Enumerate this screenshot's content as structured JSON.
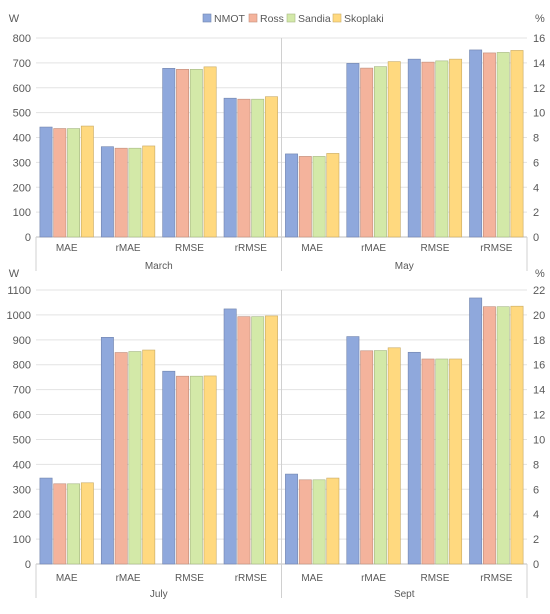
{
  "legend": {
    "series": [
      {
        "name": "NMOT",
        "color": "#8fa8dc"
      },
      {
        "name": "Ross",
        "color": "#f4b39c"
      },
      {
        "name": "Sandia",
        "color": "#d3e9a8"
      },
      {
        "name": "Skoplaki",
        "color": "#ffd97f"
      }
    ]
  },
  "chart_data": [
    {
      "type": "bar",
      "metrics": [
        "MAE",
        "rMAE",
        "RMSE",
        "rRMSE"
      ],
      "left_unit": "W",
      "right_unit": "%",
      "left_axis": {
        "min": 0,
        "max": 800,
        "step": 100
      },
      "right_axis": {
        "min": 0,
        "max": 16,
        "step": 2
      },
      "grid": true,
      "legend_position": "top",
      "panels": [
        {
          "period": "March",
          "values": [
            [
              442,
              436,
              436,
              446
            ],
            [
              363,
              357,
              357,
              366
            ],
            [
              678,
              674,
              674,
              684
            ],
            [
              558,
              554,
              554,
              564
            ]
          ]
        },
        {
          "period": "May",
          "values": [
            [
              334,
              324,
              324,
              336
            ],
            [
              698,
              679,
              685,
              705
            ],
            [
              715,
              703,
              708,
              715
            ],
            [
              752,
              740,
              742,
              750
            ]
          ]
        }
      ]
    },
    {
      "type": "bar",
      "metrics": [
        "MAE",
        "rMAE",
        "RMSE",
        "rRMSE"
      ],
      "left_unit": "W",
      "right_unit": "%",
      "left_axis": {
        "min": 0,
        "max": 1100,
        "step": 100
      },
      "right_axis": {
        "min": 0,
        "max": 22,
        "step": 2
      },
      "grid": true,
      "legend_position": "top",
      "panels": [
        {
          "period": "July",
          "values": [
            [
              345,
              322,
              322,
              326
            ],
            [
              910,
              849,
              853,
              859
            ],
            [
              774,
              754,
              754,
              755
            ],
            [
              1024,
              993,
              993,
              996
            ]
          ]
        },
        {
          "period": "Sept",
          "values": [
            [
              361,
              338,
              338,
              345
            ],
            [
              913,
              856,
              857,
              868
            ],
            [
              850,
              823,
              823,
              823
            ],
            [
              1068,
              1033,
              1033,
              1035
            ]
          ]
        }
      ]
    }
  ]
}
